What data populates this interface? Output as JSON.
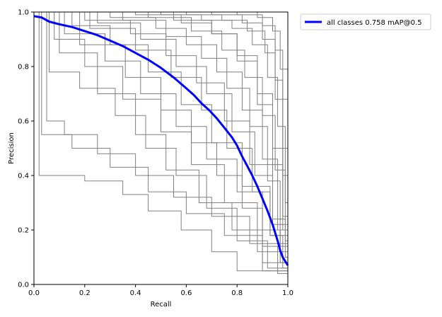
{
  "chart_data": {
    "type": "line",
    "title": "",
    "xlabel": "Recall",
    "ylabel": "Precision",
    "xlim": [
      0.0,
      1.0
    ],
    "ylim": [
      0.0,
      1.0
    ],
    "xticks": [
      "0.0",
      "0.2",
      "0.4",
      "0.6",
      "0.8",
      "1.0"
    ],
    "yticks": [
      "0.0",
      "0.2",
      "0.4",
      "0.6",
      "0.8",
      "1.0"
    ],
    "grid": false,
    "legend_position": "upper-right-outside",
    "colors": {
      "per_class": "#808080",
      "all_classes": "#0000ff"
    },
    "series": [
      {
        "name": "all classes 0.758 mAP@0.5",
        "x": [
          0.0,
          0.03,
          0.06,
          0.1,
          0.15,
          0.2,
          0.25,
          0.3,
          0.35,
          0.4,
          0.45,
          0.5,
          0.55,
          0.6,
          0.63,
          0.66,
          0.69,
          0.72,
          0.75,
          0.78,
          0.8,
          0.82,
          0.84,
          0.86,
          0.88,
          0.9,
          0.92,
          0.94,
          0.96,
          0.97,
          0.98,
          0.99,
          1.0
        ],
        "y": [
          0.985,
          0.98,
          0.965,
          0.955,
          0.945,
          0.93,
          0.915,
          0.895,
          0.875,
          0.85,
          0.825,
          0.795,
          0.76,
          0.72,
          0.695,
          0.665,
          0.64,
          0.61,
          0.575,
          0.54,
          0.51,
          0.47,
          0.435,
          0.4,
          0.36,
          0.315,
          0.27,
          0.22,
          0.16,
          0.125,
          0.1,
          0.085,
          0.07
        ]
      }
    ],
    "class_curves": [
      {
        "x": [
          0.0,
          0.05,
          0.05,
          0.12,
          0.12,
          0.25,
          0.25,
          0.4,
          0.4,
          0.55,
          0.55,
          0.7,
          0.7,
          0.85,
          0.85,
          1.0
        ],
        "y": [
          1.0,
          1.0,
          0.6,
          0.6,
          0.55,
          0.55,
          0.48,
          0.48,
          0.4,
          0.4,
          0.32,
          0.32,
          0.25,
          0.25,
          0.15,
          0.15
        ]
      },
      {
        "x": [
          0.0,
          0.03,
          0.03,
          0.15,
          0.15,
          0.3,
          0.3,
          0.45,
          0.45,
          0.6,
          0.6,
          0.75,
          0.75,
          0.9,
          0.9,
          1.0
        ],
        "y": [
          1.0,
          1.0,
          0.55,
          0.55,
          0.5,
          0.5,
          0.43,
          0.43,
          0.34,
          0.34,
          0.26,
          0.26,
          0.18,
          0.18,
          0.08,
          0.08
        ]
      },
      {
        "x": [
          0.0,
          0.1,
          0.1,
          0.25,
          0.25,
          0.4,
          0.4,
          0.52,
          0.52,
          0.65,
          0.65,
          0.78,
          0.78,
          0.9,
          0.9,
          1.0
        ],
        "y": [
          1.0,
          1.0,
          0.85,
          0.85,
          0.7,
          0.7,
          0.55,
          0.55,
          0.42,
          0.42,
          0.3,
          0.3,
          0.2,
          0.2,
          0.05,
          0.05
        ]
      },
      {
        "x": [
          0.0,
          0.08,
          0.08,
          0.2,
          0.2,
          0.35,
          0.35,
          0.5,
          0.5,
          0.62,
          0.62,
          0.75,
          0.75,
          0.88,
          0.88,
          1.0
        ],
        "y": [
          1.0,
          1.0,
          0.9,
          0.9,
          0.8,
          0.8,
          0.68,
          0.68,
          0.56,
          0.56,
          0.44,
          0.44,
          0.3,
          0.3,
          0.12,
          0.12
        ]
      },
      {
        "x": [
          0.0,
          0.15,
          0.15,
          0.3,
          0.3,
          0.45,
          0.45,
          0.58,
          0.58,
          0.7,
          0.7,
          0.82,
          0.82,
          0.93,
          0.93,
          1.0
        ],
        "y": [
          1.0,
          1.0,
          0.95,
          0.95,
          0.88,
          0.88,
          0.78,
          0.78,
          0.66,
          0.66,
          0.52,
          0.52,
          0.36,
          0.36,
          0.18,
          0.18
        ]
      },
      {
        "x": [
          0.0,
          0.2,
          0.2,
          0.38,
          0.38,
          0.52,
          0.52,
          0.64,
          0.64,
          0.75,
          0.75,
          0.85,
          0.85,
          0.94,
          0.94,
          1.0
        ],
        "y": [
          1.0,
          1.0,
          0.97,
          0.97,
          0.92,
          0.92,
          0.84,
          0.84,
          0.74,
          0.74,
          0.6,
          0.6,
          0.44,
          0.44,
          0.22,
          0.22
        ]
      },
      {
        "x": [
          0.0,
          0.3,
          0.3,
          0.48,
          0.48,
          0.6,
          0.6,
          0.72,
          0.72,
          0.82,
          0.82,
          0.9,
          0.9,
          0.96,
          0.96,
          1.0
        ],
        "y": [
          1.0,
          1.0,
          0.98,
          0.98,
          0.94,
          0.94,
          0.88,
          0.88,
          0.78,
          0.78,
          0.64,
          0.64,
          0.46,
          0.46,
          0.2,
          0.2
        ]
      },
      {
        "x": [
          0.0,
          0.4,
          0.4,
          0.58,
          0.58,
          0.7,
          0.7,
          0.8,
          0.8,
          0.88,
          0.88,
          0.94,
          0.94,
          0.98,
          0.98,
          1.0
        ],
        "y": [
          1.0,
          1.0,
          0.99,
          0.99,
          0.96,
          0.96,
          0.92,
          0.92,
          0.84,
          0.84,
          0.7,
          0.7,
          0.5,
          0.5,
          0.25,
          0.25
        ]
      },
      {
        "x": [
          0.0,
          0.5,
          0.5,
          0.66,
          0.66,
          0.78,
          0.78,
          0.86,
          0.86,
          0.92,
          0.92,
          0.96,
          0.96,
          0.99,
          0.99,
          1.0
        ],
        "y": [
          1.0,
          1.0,
          0.99,
          0.99,
          0.97,
          0.97,
          0.94,
          0.94,
          0.88,
          0.88,
          0.76,
          0.76,
          0.58,
          0.58,
          0.3,
          0.3
        ]
      },
      {
        "x": [
          0.0,
          0.6,
          0.6,
          0.74,
          0.74,
          0.84,
          0.84,
          0.91,
          0.91,
          0.95,
          0.95,
          0.98,
          0.98,
          1.0
        ],
        "y": [
          1.0,
          1.0,
          0.99,
          0.99,
          0.97,
          0.97,
          0.93,
          0.93,
          0.85,
          0.85,
          0.68,
          0.68,
          0.4,
          0.4
        ]
      },
      {
        "x": [
          0.0,
          0.02,
          0.02,
          0.1,
          0.1,
          0.2,
          0.2,
          0.35,
          0.35,
          0.45,
          0.45,
          0.58,
          0.58,
          0.7,
          0.7,
          0.8,
          0.8,
          1.0
        ],
        "y": [
          1.0,
          1.0,
          0.4,
          0.4,
          0.4,
          0.4,
          0.38,
          0.38,
          0.33,
          0.33,
          0.27,
          0.27,
          0.2,
          0.2,
          0.12,
          0.12,
          0.05,
          0.05
        ]
      },
      {
        "x": [
          0.0,
          0.06,
          0.06,
          0.18,
          0.18,
          0.32,
          0.32,
          0.44,
          0.44,
          0.56,
          0.56,
          0.68,
          0.68,
          0.8,
          0.8,
          0.92,
          0.92,
          1.0
        ],
        "y": [
          1.0,
          1.0,
          0.78,
          0.78,
          0.72,
          0.72,
          0.62,
          0.62,
          0.5,
          0.5,
          0.4,
          0.4,
          0.28,
          0.28,
          0.16,
          0.16,
          0.06,
          0.06
        ]
      },
      {
        "x": [
          0.0,
          0.12,
          0.12,
          0.28,
          0.28,
          0.42,
          0.42,
          0.56,
          0.56,
          0.68,
          0.68,
          0.8,
          0.8,
          0.9,
          0.9,
          0.97,
          0.97,
          1.0
        ],
        "y": [
          1.0,
          1.0,
          0.92,
          0.92,
          0.82,
          0.82,
          0.7,
          0.7,
          0.58,
          0.58,
          0.46,
          0.46,
          0.34,
          0.34,
          0.2,
          0.2,
          0.08,
          0.08
        ]
      },
      {
        "x": [
          0.0,
          0.25,
          0.25,
          0.42,
          0.42,
          0.56,
          0.56,
          0.68,
          0.68,
          0.78,
          0.78,
          0.87,
          0.87,
          0.94,
          0.94,
          0.99,
          0.99,
          1.0
        ],
        "y": [
          1.0,
          1.0,
          0.96,
          0.96,
          0.9,
          0.9,
          0.8,
          0.8,
          0.7,
          0.7,
          0.56,
          0.56,
          0.4,
          0.4,
          0.24,
          0.24,
          0.1,
          0.1
        ]
      },
      {
        "x": [
          0.0,
          0.35,
          0.35,
          0.52,
          0.52,
          0.66,
          0.66,
          0.76,
          0.76,
          0.85,
          0.85,
          0.92,
          0.92,
          0.97,
          0.97,
          1.0
        ],
        "y": [
          1.0,
          1.0,
          0.97,
          0.97,
          0.91,
          0.91,
          0.83,
          0.83,
          0.72,
          0.72,
          0.58,
          0.58,
          0.38,
          0.38,
          0.14,
          0.14
        ]
      },
      {
        "x": [
          0.0,
          0.45,
          0.45,
          0.62,
          0.62,
          0.74,
          0.74,
          0.83,
          0.83,
          0.9,
          0.9,
          0.95,
          0.95,
          0.99,
          0.99,
          1.0
        ],
        "y": [
          1.0,
          1.0,
          0.98,
          0.98,
          0.93,
          0.93,
          0.86,
          0.86,
          0.76,
          0.76,
          0.62,
          0.62,
          0.42,
          0.42,
          0.16,
          0.16
        ]
      },
      {
        "x": [
          0.0,
          0.7,
          0.7,
          0.82,
          0.82,
          0.9,
          0.9,
          0.95,
          0.95,
          0.98,
          0.98,
          1.0
        ],
        "y": [
          1.0,
          1.0,
          0.99,
          0.99,
          0.96,
          0.96,
          0.9,
          0.9,
          0.75,
          0.75,
          0.5,
          0.5
        ]
      },
      {
        "x": [
          0.0,
          0.8,
          0.8,
          0.9,
          0.9,
          0.95,
          0.95,
          0.98,
          0.98,
          1.0
        ],
        "y": [
          1.0,
          1.0,
          0.99,
          0.99,
          0.95,
          0.95,
          0.86,
          0.86,
          0.68,
          0.68
        ]
      },
      {
        "x": [
          0.0,
          0.88,
          0.88,
          0.94,
          0.94,
          0.97,
          0.97,
          1.0
        ],
        "y": [
          1.0,
          1.0,
          0.98,
          0.98,
          0.93,
          0.93,
          0.79,
          0.79
        ]
      },
      {
        "x": [
          0.0,
          0.18,
          0.18,
          0.36,
          0.36,
          0.5,
          0.5,
          0.62,
          0.62,
          0.72,
          0.72,
          0.82,
          0.82,
          0.9,
          0.9,
          0.96,
          0.96,
          1.0
        ],
        "y": [
          1.0,
          1.0,
          0.88,
          0.88,
          0.76,
          0.76,
          0.64,
          0.64,
          0.52,
          0.52,
          0.4,
          0.4,
          0.28,
          0.28,
          0.14,
          0.14,
          0.04,
          0.04
        ]
      },
      {
        "x": [
          0.0,
          0.22,
          0.22,
          0.4,
          0.4,
          0.54,
          0.54,
          0.66,
          0.66,
          0.76,
          0.76,
          0.86,
          0.86,
          0.93,
          0.93,
          0.98,
          0.98,
          1.0
        ],
        "y": [
          1.0,
          1.0,
          0.94,
          0.94,
          0.86,
          0.86,
          0.76,
          0.76,
          0.64,
          0.64,
          0.5,
          0.5,
          0.34,
          0.34,
          0.18,
          0.18,
          0.06,
          0.06
        ]
      },
      {
        "x": [
          0.0,
          0.55,
          0.55,
          0.7,
          0.7,
          0.8,
          0.8,
          0.88,
          0.88,
          0.94,
          0.94,
          0.98,
          0.98,
          1.0
        ],
        "y": [
          1.0,
          1.0,
          0.97,
          0.97,
          0.92,
          0.92,
          0.82,
          0.82,
          0.66,
          0.66,
          0.44,
          0.44,
          0.2,
          0.2
        ]
      }
    ]
  }
}
